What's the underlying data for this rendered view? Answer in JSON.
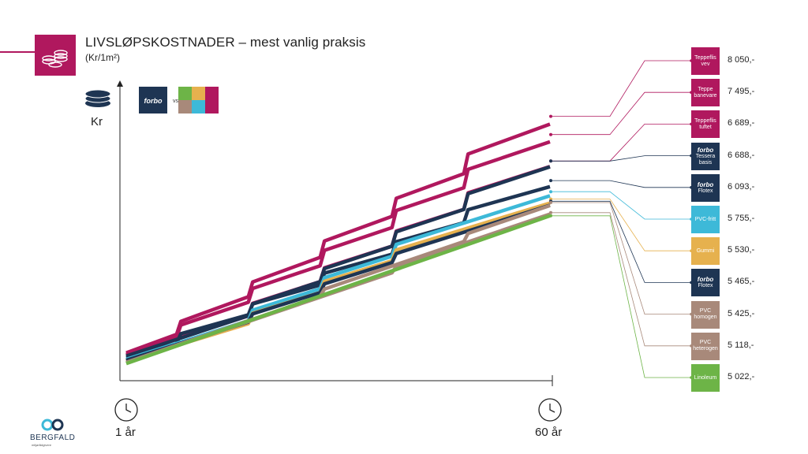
{
  "chart_data": {
    "type": "line",
    "title": "LIVSLØPSKOSTNADER – mest vanlig praksis",
    "subtitle": "(Kr/1m²)",
    "ylabel": "Kr",
    "xlabel_start": "1 år",
    "xlabel_end": "60 år",
    "x_range": [
      1,
      60
    ],
    "ylim": [
      0,
      9000
    ],
    "comparison_brand": "forbo",
    "comparison_vs": "vs",
    "series": [
      {
        "name": "Teppeflis vev",
        "label": [
          "Teppeflis",
          "vev"
        ],
        "value_text": "8 050,-",
        "color": "#b0185e",
        "start": 850,
        "end": 8050,
        "steps": [
          [
            8,
            400
          ],
          [
            18,
            450
          ],
          [
            28,
            500
          ],
          [
            38,
            550
          ],
          [
            48,
            600
          ]
        ]
      },
      {
        "name": "Teppe banevare",
        "label": [
          "Teppe",
          "banevare"
        ],
        "value_text": "7 495,-",
        "color": "#b0185e",
        "start": 800,
        "end": 7495,
        "steps": [
          [
            8,
            380
          ],
          [
            18,
            420
          ],
          [
            28,
            470
          ],
          [
            38,
            520
          ],
          [
            48,
            560
          ]
        ]
      },
      {
        "name": "Teppeflis tuftet",
        "label": [
          "Teppeflis",
          "tuftet"
        ],
        "value_text": "6 689,-",
        "color": "#b0185e",
        "start": 780,
        "end": 6689,
        "steps": [
          [
            18,
            380
          ],
          [
            28,
            420
          ],
          [
            38,
            460
          ],
          [
            48,
            500
          ]
        ]
      },
      {
        "name": "Forbo Tessera basis",
        "label": [
          "forbo",
          "Tessera basis"
        ],
        "value_text": "6 688,-",
        "color": "#1e3553",
        "start": 750,
        "end": 6688,
        "steps": [
          [
            18,
            360
          ],
          [
            28,
            400
          ],
          [
            38,
            440
          ],
          [
            48,
            480
          ]
        ]
      },
      {
        "name": "Forbo Flotex",
        "label": [
          "forbo",
          "Flotex"
        ],
        "value_text": "6 093,-",
        "color": "#1e3553",
        "start": 700,
        "end": 6093,
        "steps": [
          [
            8,
            300
          ],
          [
            18,
            330
          ],
          [
            28,
            360
          ],
          [
            38,
            380
          ],
          [
            48,
            400
          ]
        ]
      },
      {
        "name": "PVC-fritt",
        "label": [
          "PVC-fritt"
        ],
        "value_text": "5 755,-",
        "color": "#3db9d8",
        "start": 650,
        "end": 5755,
        "steps": [
          [
            18,
            320
          ],
          [
            28,
            340
          ],
          [
            38,
            360
          ]
        ]
      },
      {
        "name": "Gummi",
        "label": [
          "Gummi"
        ],
        "value_text": "5 530,-",
        "color": "#e6b14e",
        "start": 600,
        "end": 5530,
        "steps": [
          [
            18,
            320
          ],
          [
            28,
            340
          ],
          [
            38,
            330
          ]
        ]
      },
      {
        "name": "Forbo Flotex banevare",
        "label": [
          "forbo",
          "Flotex"
        ],
        "value_text": "5 465,-",
        "color": "#1e3553",
        "start": 620,
        "end": 5465,
        "steps": [
          [
            18,
            250
          ],
          [
            28,
            270
          ],
          [
            38,
            280
          ]
        ]
      },
      {
        "name": "PVC homogen",
        "label": [
          "PVC",
          "homogen"
        ],
        "value_text": "5 425,-",
        "color": "#a8897a",
        "start": 560,
        "end": 5425,
        "steps": [
          [
            28,
            220
          ],
          [
            48,
            250
          ]
        ]
      },
      {
        "name": "PVC heterogen",
        "label": [
          "PVC",
          "heterogen"
        ],
        "value_text": "5 118,-",
        "color": "#a8897a",
        "start": 540,
        "end": 5118,
        "steps": [
          [
            38,
            200
          ]
        ]
      },
      {
        "name": "Linoleum",
        "label": [
          "Linoleum"
        ],
        "value_text": "5 022,-",
        "color": "#6db447",
        "start": 520,
        "end": 5022,
        "steps": []
      }
    ]
  },
  "logo": {
    "name": "BERGFALD",
    "tagline": "miljørådgivere"
  },
  "icons": {
    "header": "coins-icon",
    "yaxis": "coin-stack-icon",
    "clock": "clock-icon"
  }
}
